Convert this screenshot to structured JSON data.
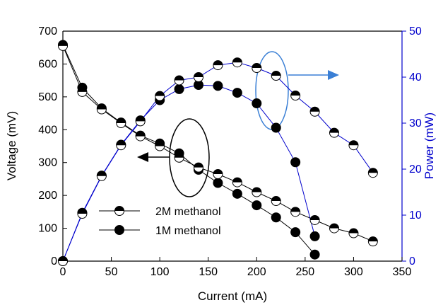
{
  "chart_data": {
    "type": "line",
    "xlabel": "Current (mA)",
    "ylabel_left": "Voltage (mV)",
    "ylabel_right": "Power (mW)",
    "xlim": [
      0,
      350
    ],
    "ylim_left": [
      0,
      700
    ],
    "ylim_right": [
      0,
      50
    ],
    "x_ticks": [
      "0",
      "50",
      "100",
      "150",
      "200",
      "250",
      "300",
      "350"
    ],
    "y_left_ticks": [
      "0",
      "100",
      "200",
      "300",
      "400",
      "500",
      "600",
      "700"
    ],
    "y_right_ticks": [
      "0",
      "10",
      "20",
      "30",
      "40",
      "50"
    ],
    "legend_position": "bottom-left",
    "colors": {
      "voltage_line": "#000000",
      "power_line": "#0000cc",
      "right_axis": "#0000cc",
      "annotation": "#3a7fd5"
    },
    "series": [
      {
        "name": "2M methanol",
        "marker": "half-filled-circle",
        "voltage": {
          "x": [
            0,
            20,
            40,
            60,
            80,
            100,
            120,
            140,
            160,
            180,
            200,
            220,
            240,
            260,
            280,
            300,
            320
          ],
          "y": [
            655,
            515,
            462,
            420,
            380,
            350,
            315,
            285,
            265,
            240,
            210,
            183,
            150,
            125,
            100,
            85,
            60
          ]
        },
        "power": {
          "x": [
            0,
            20,
            40,
            60,
            80,
            100,
            120,
            140,
            160,
            180,
            200,
            220,
            240,
            260,
            280,
            300,
            320
          ],
          "y": [
            0,
            10.3,
            18.5,
            25.2,
            30.4,
            35.9,
            39.3,
            40.0,
            42.6,
            43.2,
            42.0,
            40.3,
            36.0,
            32.5,
            27.9,
            25.2,
            19.2
          ]
        }
      },
      {
        "name": "1M methanol",
        "marker": "filled-circle",
        "voltage": {
          "x": [
            0,
            20,
            40,
            60,
            80,
            100,
            120,
            140,
            160,
            180,
            200,
            220,
            240,
            260
          ],
          "y": [
            658,
            528,
            465,
            422,
            382,
            358,
            328,
            278,
            238,
            205,
            170,
            133,
            88,
            20
          ]
        },
        "power": {
          "x": [
            0,
            20,
            40,
            60,
            80,
            100,
            120,
            140,
            160,
            180,
            200,
            220,
            240,
            260
          ],
          "y": [
            0,
            10.5,
            18.6,
            25.3,
            30.6,
            35.0,
            37.4,
            38.3,
            38.1,
            36.6,
            34.3,
            29.0,
            21.5,
            5.4
          ]
        }
      }
    ],
    "annotations": [
      {
        "type": "ellipse-with-arrow",
        "target": "voltage",
        "points_to": "left axis"
      },
      {
        "type": "ellipse-with-arrow",
        "target": "power",
        "points_to": "right axis"
      }
    ]
  }
}
